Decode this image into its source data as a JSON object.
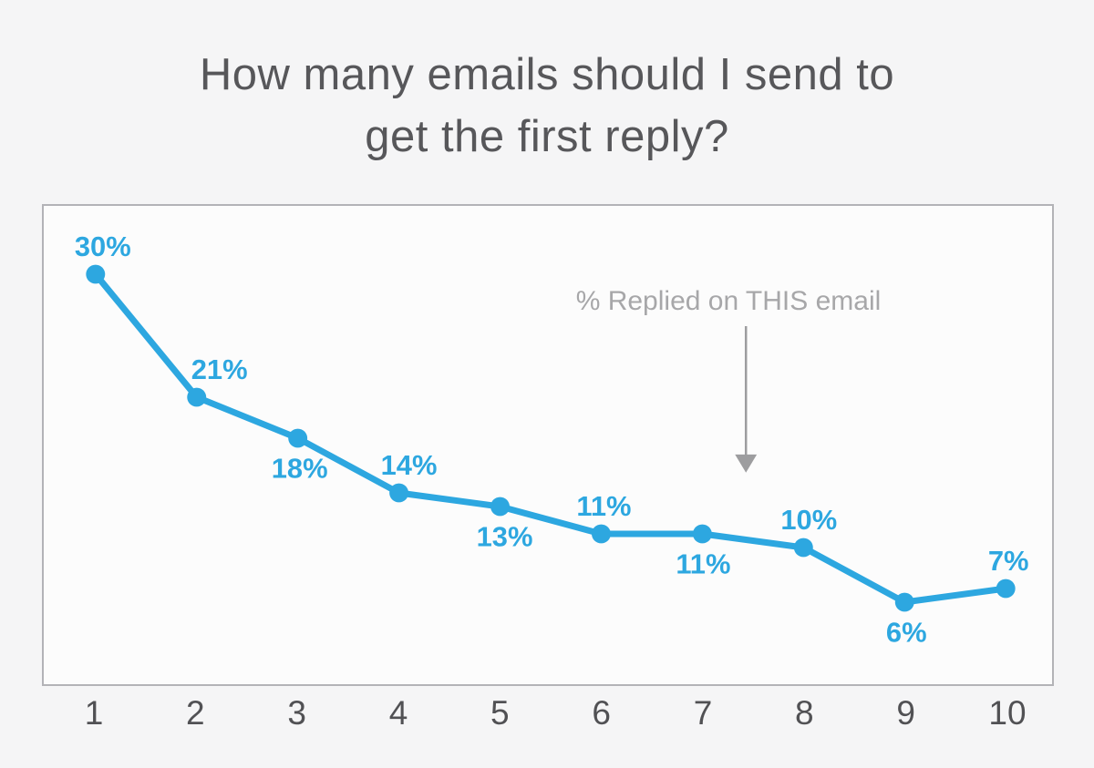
{
  "title": {
    "line1": "How many emails should I send to",
    "line2": "get the first reply?"
  },
  "annotation": {
    "text": "% Replied on THIS email"
  },
  "x_axis": {
    "labels": [
      "1",
      "2",
      "3",
      "4",
      "5",
      "6",
      "7",
      "8",
      "9",
      "10"
    ]
  },
  "colors": {
    "accent_blue": "#2da7e0",
    "title_gray": "#57575a",
    "annotation_gray": "#a7a7a9",
    "axis_label_gray": "#515154",
    "chart_border": "#b3b3b7",
    "page_bg": "#f5f5f6",
    "chart_bg": "#fcfcfc",
    "arrow_gray": "#9d9d9f"
  },
  "chart_data": {
    "type": "line",
    "title": "How many emails should I send to get the first reply?",
    "x": [
      1,
      2,
      3,
      4,
      5,
      6,
      7,
      8,
      9,
      10
    ],
    "series": [
      {
        "name": "% Replied on THIS email",
        "values": [
          30,
          21,
          18,
          14,
          13,
          11,
          11,
          10,
          6,
          7
        ]
      }
    ],
    "point_labels": [
      "30%",
      "21%",
      "18%",
      "14%",
      "13%",
      "11%",
      "11%",
      "10%",
      "6%",
      "7%"
    ],
    "label_placement": [
      "above",
      "above",
      "below",
      "above",
      "below",
      "above",
      "below",
      "above",
      "below",
      "above"
    ],
    "label_dx": [
      8,
      25,
      2,
      11,
      5,
      3,
      1,
      6,
      2,
      3
    ],
    "annotation": "% Replied on THIS email",
    "xlabel": "",
    "ylabel": "",
    "ylim": [
      0,
      35
    ],
    "grid": false,
    "legend": "none",
    "line_color": "#2da7e0",
    "marker_radius": 10.5,
    "line_width": 7
  }
}
